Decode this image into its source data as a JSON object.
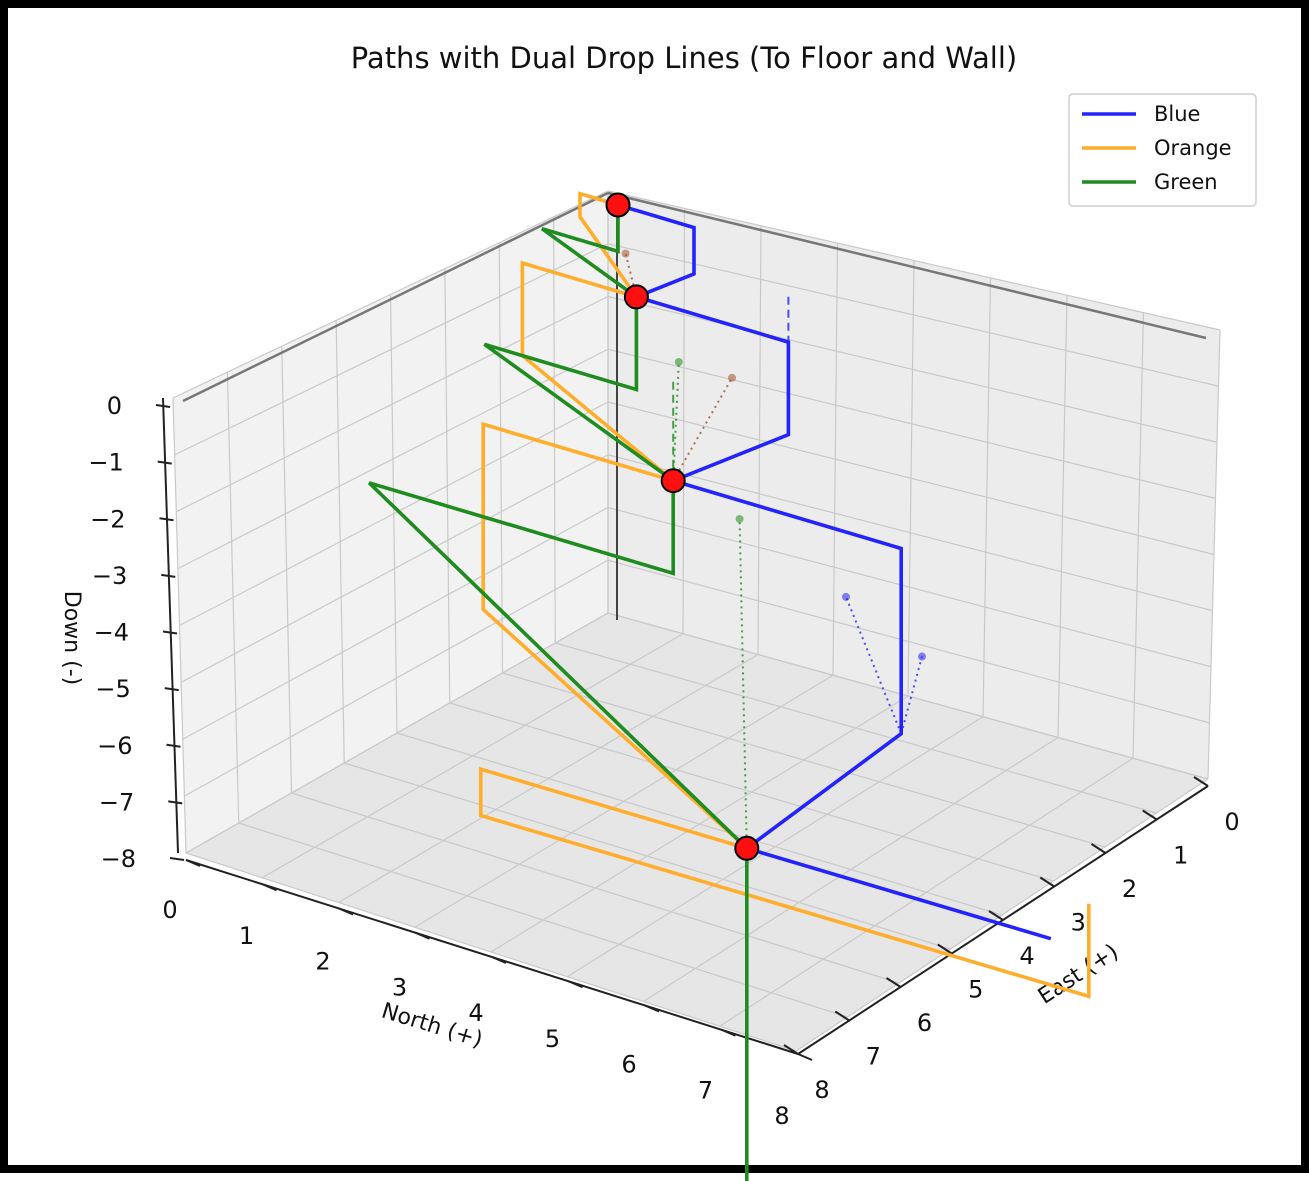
{
  "chart_data": {
    "type": "line3d",
    "title": "Paths with Dual Drop Lines (To Floor and Wall)",
    "axes": {
      "north": {
        "label": "North (+)",
        "lim": [
          0,
          8
        ],
        "ticks": [
          "0",
          "1",
          "2",
          "3",
          "4",
          "5",
          "6",
          "7",
          "8"
        ]
      },
      "east": {
        "label": "East (+)",
        "lim": [
          0,
          8
        ],
        "ticks": [
          "0",
          "1",
          "2",
          "3",
          "4",
          "5",
          "6",
          "7",
          "8"
        ]
      },
      "down": {
        "label": "Down (-)",
        "lim": [
          -8,
          0
        ],
        "ticks": [
          "0",
          "−1",
          "−2",
          "−3",
          "−4",
          "−5",
          "−6",
          "−7",
          "−8"
        ]
      }
    },
    "grid": true,
    "legend_position": "top-right",
    "series": [
      {
        "name": "Blue",
        "color": "#2323ff",
        "points": [
          [
            0,
            0,
            0
          ],
          [
            0,
            1,
            0
          ],
          [
            0,
            1,
            -1
          ],
          [
            1,
            0,
            -1
          ],
          [
            1,
            2,
            -1
          ],
          [
            1,
            2,
            -3
          ],
          [
            3,
            0,
            -3
          ],
          [
            3,
            3,
            -3
          ],
          [
            3,
            3,
            -7
          ],
          [
            7,
            0,
            -7
          ],
          [
            7,
            4,
            -7
          ]
        ]
      },
      {
        "name": "Orange",
        "color": "#ffad2a",
        "points": [
          [
            0,
            0,
            0
          ],
          [
            0,
            -0.5,
            0
          ],
          [
            0,
            -0.5,
            -0.5
          ],
          [
            1,
            0,
            -1
          ],
          [
            1,
            -1.5,
            -1
          ],
          [
            1,
            -1.5,
            -3
          ],
          [
            3,
            0,
            -3
          ],
          [
            3,
            -2.5,
            -3
          ],
          [
            3,
            -2.5,
            -7
          ],
          [
            7,
            0,
            -7
          ],
          [
            7,
            -3.5,
            -7
          ],
          [
            7,
            -3.5,
            -8
          ],
          [
            7,
            0,
            -8
          ],
          [
            7,
            4.5,
            -8
          ],
          [
            7,
            4.5,
            -6
          ]
        ]
      },
      {
        "name": "Green",
        "color": "#1e8c1e",
        "points": [
          [
            0,
            0,
            0
          ],
          [
            0,
            0,
            -1
          ],
          [
            0,
            -1,
            -1
          ],
          [
            1,
            0,
            -1
          ],
          [
            1,
            0,
            -3
          ],
          [
            1,
            -2,
            -3
          ],
          [
            3,
            0,
            -3
          ],
          [
            3,
            0,
            -5
          ],
          [
            3,
            -4,
            -5
          ],
          [
            7,
            0,
            -7
          ],
          [
            7,
            0,
            -14.5
          ]
        ]
      }
    ],
    "waypoints": [
      [
        0,
        0,
        0
      ],
      [
        1,
        0,
        -1
      ],
      [
        3,
        0,
        -3
      ],
      [
        7,
        0,
        -7
      ]
    ],
    "drop_lines": [
      {
        "color": "#2323ff",
        "style": "dashed",
        "from": [
          1,
          2,
          -3
        ],
        "to": [
          1,
          2,
          0
        ]
      },
      {
        "color": "#2323ff",
        "style": "dashed",
        "from": [
          3,
          3,
          -7
        ],
        "to": [
          3,
          3,
          -3.2
        ]
      },
      {
        "color": "#2323ff",
        "style": "dotted",
        "from": [
          3,
          3,
          -7
        ],
        "to": [
          0,
          3,
          -7
        ]
      },
      {
        "color": "#ffad2a",
        "style": "dashed",
        "from": [
          1,
          -1.5,
          -3
        ],
        "to": [
          1,
          -1.5,
          -1.3
        ]
      },
      {
        "color": "#ffad2a",
        "style": "dashed",
        "from": [
          3,
          -2.5,
          -7
        ],
        "to": [
          3,
          -2.5,
          -3.2
        ]
      },
      {
        "color": "#1e8c1e",
        "style": "dashed",
        "from": [
          3,
          0,
          -3
        ],
        "to": [
          3,
          0,
          -0.8
        ]
      },
      {
        "color": "#1e8c1e",
        "style": "dotted",
        "from": [
          3,
          0,
          -3
        ],
        "to": [
          0,
          0.8,
          -3
        ]
      },
      {
        "color": "#1e8c1e",
        "style": "dotted",
        "from": [
          7,
          0,
          -7
        ],
        "to": [
          0,
          1.6,
          -6
        ]
      },
      {
        "color": "#a0522d",
        "style": "dotted",
        "from": [
          1,
          0,
          -1
        ],
        "to": [
          0,
          0.1,
          -1
        ]
      },
      {
        "color": "#a0522d",
        "style": "dotted",
        "from": [
          3,
          0,
          -3
        ],
        "to": [
          0,
          1.5,
          -3
        ]
      },
      {
        "color": "#2323ff",
        "style": "dotted",
        "from": [
          3,
          3,
          -7
        ],
        "to": [
          0,
          4,
          -7.8
        ]
      }
    ]
  }
}
